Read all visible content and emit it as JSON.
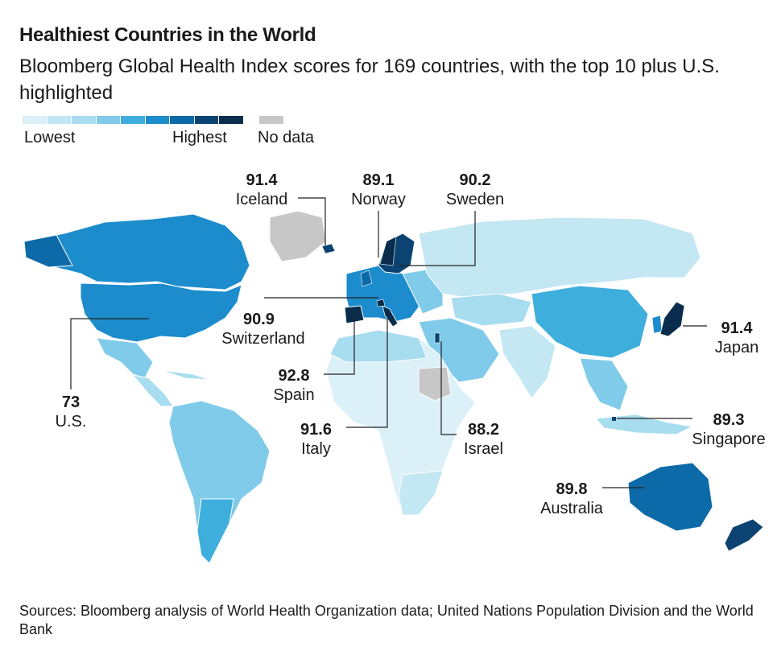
{
  "title": "Healthiest Countries in the World",
  "subtitle": "Bloomberg Global Health Index scores for 169 countries, with the top 10 plus U.S. highlighted",
  "legend": {
    "lowest": "Lowest",
    "highest": "Highest",
    "no_data": "No data",
    "scale_colors": [
      "#dcf0f8",
      "#c3e7f3",
      "#a8ddf0",
      "#7fcbe9",
      "#3eaedd",
      "#1c8ccd",
      "#0d6aa8",
      "#0b4472",
      "#0a2d4d"
    ],
    "no_data_color": "#c7c7c7"
  },
  "countries": [
    {
      "name": "Iceland",
      "score": "91.4"
    },
    {
      "name": "Norway",
      "score": "89.1"
    },
    {
      "name": "Sweden",
      "score": "90.2"
    },
    {
      "name": "Switzerland",
      "score": "90.9"
    },
    {
      "name": "Japan",
      "score": "91.4"
    },
    {
      "name": "Spain",
      "score": "92.8"
    },
    {
      "name": "U.S.",
      "score": "73"
    },
    {
      "name": "Italy",
      "score": "91.6"
    },
    {
      "name": "Israel",
      "score": "88.2"
    },
    {
      "name": "Singapore",
      "score": "89.3"
    },
    {
      "name": "Australia",
      "score": "89.8"
    }
  ],
  "source": "Sources: Bloomberg analysis of World Health Organization data; United Nations Population Division and the World Bank"
}
